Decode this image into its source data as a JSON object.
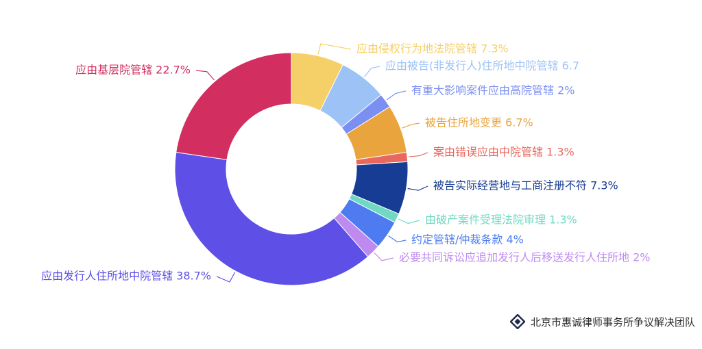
{
  "chart_data": {
    "type": "pie",
    "style": "donut",
    "slices": [
      {
        "label": "应由侵权行为地法院管辖 7.3%",
        "value": 7.3,
        "color": "#F5CF67"
      },
      {
        "label": "应由被告(非发行人)住所地中院管辖 6.7",
        "value": 6.7,
        "color": "#9DC3F6"
      },
      {
        "label": "有重大影响案件应由高院管辖 2%",
        "value": 2,
        "color": "#7B8FF2"
      },
      {
        "label": "被告住所地变更 6.7%",
        "value": 6.7,
        "color": "#EAA43E"
      },
      {
        "label": "案由错误应由中院管辖 1.3%",
        "value": 1.3,
        "color": "#E8675E"
      },
      {
        "label": "被告实际经营地与工商注册不符 7.3%",
        "value": 7.3,
        "color": "#173C93"
      },
      {
        "label": "由破产案件受理法院审理 1.3%",
        "value": 1.3,
        "color": "#6FD9C1"
      },
      {
        "label": "约定管辖/仲裁条款 4%",
        "value": 4,
        "color": "#4E7CF0"
      },
      {
        "label": "必要共同诉讼应追加发行人后移送发行人住所地 2%",
        "value": 2,
        "color": "#BE8AF0"
      },
      {
        "label": "应由发行人住所地中院管辖 38.7%",
        "value": 38.7,
        "color": "#5E4FE6"
      },
      {
        "label": "应由基层院管辖 22.7%",
        "value": 22.7,
        "color": "#D22E60"
      }
    ]
  },
  "footer": {
    "text": "北京市惠诚律师事务所争议解决团队",
    "logo_icon": "diamond-logo-icon"
  }
}
